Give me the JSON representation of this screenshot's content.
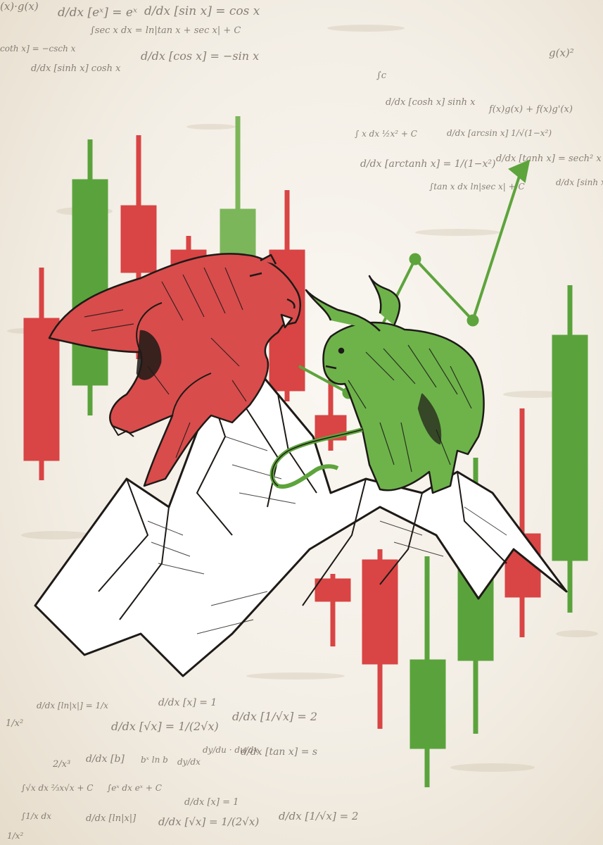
{
  "colors": {
    "background": "#f3eee5",
    "bear": "#d94c4c",
    "bear_candle": "#d94444",
    "bull": "#5da43c",
    "bull_candle": "#5aa33c",
    "ink": "#1e1a17",
    "formula_ink": "#6b6258"
  },
  "illustration": {
    "subject": "bear-vs-bull",
    "bear_icon": "bear-icon",
    "bull_icon": "bull-icon",
    "trend_arrow_icon": "trend-up-arrow-icon"
  },
  "formulas": {
    "top": [
      "(x)·g(x)",
      "d/dx [eˣ] = eˣ",
      "d/dx [sin x] = cos x",
      "∫sec x dx = ln|tan x + sec x| + C",
      "d/dx [cos x] = −sin x",
      "d/dx [sinh x]  cosh x",
      "coth x] = −csch x",
      "g(x)²",
      "∫c",
      "d/dx [cosh x]  sinh x",
      "f(x)g(x) + f(x)g'(x)",
      "∫ x dx  ½x² + C",
      "d/dx [arcsin x]  1/√(1−x²)",
      "d/dx [arctanh x] = 1/(1−x²)",
      "d/dx [tanh x] = sech² x",
      "∫tan x dx  ln|sec x| + C",
      "d/dx [sinh x]"
    ],
    "bottom": [
      "d/dx [ln|x|] = 1/x",
      "d/dx [x] = 1",
      "1/x²",
      "d/dx [√x] = 1/(2√x)",
      "d/dx [1/√x] = 2",
      "d/dx [b]",
      "bˣ ln b",
      "dy/dx",
      "dy/du · du/dx",
      "d/dx [tan x] = s",
      "2/x³",
      "∫√x dx  ⅔x√x + C",
      "∫eˣ dx  eˣ + C",
      "∫1/x dx",
      "d/dx [ln|x|]",
      "d/dx [√x] = 1/(2√x)",
      "d/dx [x] = 1",
      "d/dx [1/√x] = 2",
      "1/x²"
    ]
  }
}
